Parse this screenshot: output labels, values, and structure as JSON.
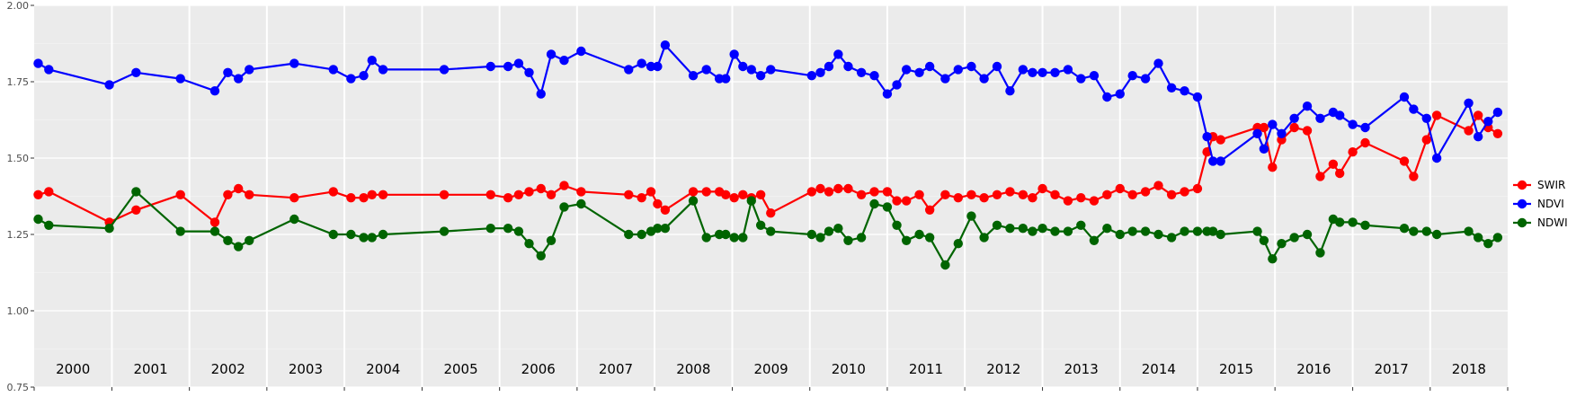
{
  "chart_data": {
    "type": "line",
    "title": "",
    "xlabel": "",
    "ylabel": "",
    "ylim": [
      0.75,
      2.0
    ],
    "xlim": [
      "2000-01-01",
      "2019-01-01"
    ],
    "yticks": [
      "0.75",
      "1.00",
      "1.25",
      "1.50",
      "1.75",
      "2.00"
    ],
    "year_labels": [
      "2000",
      "2001",
      "2002",
      "2003",
      "2004",
      "2005",
      "2006",
      "2007",
      "2008",
      "2009",
      "2010",
      "2011",
      "2012",
      "2013",
      "2014",
      "2015",
      "2016",
      "2017",
      "2018"
    ],
    "grid": true,
    "legend_position": "right",
    "series": [
      {
        "name": "SWIR",
        "color": "#ff0000",
        "points": [
          [
            "2000-01-20",
            1.38
          ],
          [
            "2000-03-10",
            1.39
          ],
          [
            "2000-12-20",
            1.29
          ],
          [
            "2001-04-25",
            1.33
          ],
          [
            "2001-11-20",
            1.38
          ],
          [
            "2002-05-01",
            1.29
          ],
          [
            "2002-07-01",
            1.38
          ],
          [
            "2002-08-20",
            1.4
          ],
          [
            "2002-10-10",
            1.38
          ],
          [
            "2003-05-10",
            1.37
          ],
          [
            "2003-11-10",
            1.39
          ],
          [
            "2004-02-01",
            1.37
          ],
          [
            "2004-04-01",
            1.37
          ],
          [
            "2004-05-10",
            1.38
          ],
          [
            "2004-07-01",
            1.38
          ],
          [
            "2005-04-15",
            1.38
          ],
          [
            "2005-11-20",
            1.38
          ],
          [
            "2006-02-10",
            1.37
          ],
          [
            "2006-04-01",
            1.38
          ],
          [
            "2006-05-20",
            1.39
          ],
          [
            "2006-07-15",
            1.4
          ],
          [
            "2006-09-01",
            1.38
          ],
          [
            "2006-11-01",
            1.41
          ],
          [
            "2007-01-20",
            1.39
          ],
          [
            "2007-09-01",
            1.38
          ],
          [
            "2007-11-01",
            1.37
          ],
          [
            "2007-12-15",
            1.39
          ],
          [
            "2008-01-15",
            1.35
          ],
          [
            "2008-02-20",
            1.33
          ],
          [
            "2008-07-01",
            1.39
          ],
          [
            "2008-09-01",
            1.39
          ],
          [
            "2008-11-01",
            1.39
          ],
          [
            "2008-12-01",
            1.38
          ],
          [
            "2009-01-10",
            1.37
          ],
          [
            "2009-02-20",
            1.38
          ],
          [
            "2009-04-01",
            1.37
          ],
          [
            "2009-05-15",
            1.38
          ],
          [
            "2009-07-01",
            1.32
          ],
          [
            "2010-01-10",
            1.39
          ],
          [
            "2010-02-20",
            1.4
          ],
          [
            "2010-04-01",
            1.39
          ],
          [
            "2010-05-15",
            1.4
          ],
          [
            "2010-07-01",
            1.4
          ],
          [
            "2010-09-01",
            1.38
          ],
          [
            "2010-11-01",
            1.39
          ],
          [
            "2011-01-01",
            1.39
          ],
          [
            "2011-02-15",
            1.36
          ],
          [
            "2011-04-01",
            1.36
          ],
          [
            "2011-06-01",
            1.38
          ],
          [
            "2011-07-20",
            1.33
          ],
          [
            "2011-10-01",
            1.38
          ],
          [
            "2011-12-01",
            1.37
          ],
          [
            "2012-02-01",
            1.38
          ],
          [
            "2012-04-01",
            1.37
          ],
          [
            "2012-06-01",
            1.38
          ],
          [
            "2012-08-01",
            1.39
          ],
          [
            "2012-10-01",
            1.38
          ],
          [
            "2012-11-15",
            1.37
          ],
          [
            "2013-01-01",
            1.4
          ],
          [
            "2013-03-01",
            1.38
          ],
          [
            "2013-05-01",
            1.36
          ],
          [
            "2013-07-01",
            1.37
          ],
          [
            "2013-09-01",
            1.36
          ],
          [
            "2013-11-01",
            1.38
          ],
          [
            "2014-01-01",
            1.4
          ],
          [
            "2014-03-01",
            1.38
          ],
          [
            "2014-05-01",
            1.39
          ],
          [
            "2014-07-01",
            1.41
          ],
          [
            "2014-09-01",
            1.38
          ],
          [
            "2014-11-01",
            1.39
          ],
          [
            "2015-01-01",
            1.4
          ],
          [
            "2015-02-15",
            1.52
          ],
          [
            "2015-03-15",
            1.57
          ],
          [
            "2015-04-20",
            1.56
          ],
          [
            "2015-10-10",
            1.6
          ],
          [
            "2015-11-10",
            1.6
          ],
          [
            "2015-12-20",
            1.47
          ],
          [
            "2016-02-01",
            1.56
          ],
          [
            "2016-04-01",
            1.6
          ],
          [
            "2016-06-01",
            1.59
          ],
          [
            "2016-08-01",
            1.44
          ],
          [
            "2016-10-01",
            1.48
          ],
          [
            "2016-11-01",
            1.45
          ],
          [
            "2017-01-01",
            1.52
          ],
          [
            "2017-03-01",
            1.55
          ],
          [
            "2017-09-01",
            1.49
          ],
          [
            "2017-10-15",
            1.44
          ],
          [
            "2017-12-15",
            1.56
          ],
          [
            "2018-02-01",
            1.64
          ],
          [
            "2018-07-01",
            1.59
          ],
          [
            "2018-08-15",
            1.64
          ],
          [
            "2018-10-01",
            1.6
          ],
          [
            "2018-11-15",
            1.58
          ]
        ]
      },
      {
        "name": "NDVI",
        "color": "#0000ff",
        "points": [
          [
            "2000-01-20",
            1.81
          ],
          [
            "2000-03-10",
            1.79
          ],
          [
            "2000-12-20",
            1.74
          ],
          [
            "2001-04-25",
            1.78
          ],
          [
            "2001-11-20",
            1.76
          ],
          [
            "2002-05-01",
            1.72
          ],
          [
            "2002-07-01",
            1.78
          ],
          [
            "2002-08-20",
            1.76
          ],
          [
            "2002-10-10",
            1.79
          ],
          [
            "2003-05-10",
            1.81
          ],
          [
            "2003-11-10",
            1.79
          ],
          [
            "2004-02-01",
            1.76
          ],
          [
            "2004-04-01",
            1.77
          ],
          [
            "2004-05-10",
            1.82
          ],
          [
            "2004-07-01",
            1.79
          ],
          [
            "2005-04-15",
            1.79
          ],
          [
            "2005-11-20",
            1.8
          ],
          [
            "2006-02-10",
            1.8
          ],
          [
            "2006-04-01",
            1.81
          ],
          [
            "2006-05-20",
            1.78
          ],
          [
            "2006-07-15",
            1.71
          ],
          [
            "2006-09-01",
            1.84
          ],
          [
            "2006-11-01",
            1.82
          ],
          [
            "2007-01-20",
            1.85
          ],
          [
            "2007-09-01",
            1.79
          ],
          [
            "2007-11-01",
            1.81
          ],
          [
            "2007-12-15",
            1.8
          ],
          [
            "2008-01-15",
            1.8
          ],
          [
            "2008-02-20",
            1.87
          ],
          [
            "2008-07-01",
            1.77
          ],
          [
            "2008-09-01",
            1.79
          ],
          [
            "2008-11-01",
            1.76
          ],
          [
            "2008-12-01",
            1.76
          ],
          [
            "2009-01-10",
            1.84
          ],
          [
            "2009-02-20",
            1.8
          ],
          [
            "2009-04-01",
            1.79
          ],
          [
            "2009-05-15",
            1.77
          ],
          [
            "2009-07-01",
            1.79
          ],
          [
            "2010-01-10",
            1.77
          ],
          [
            "2010-02-20",
            1.78
          ],
          [
            "2010-04-01",
            1.8
          ],
          [
            "2010-05-15",
            1.84
          ],
          [
            "2010-07-01",
            1.8
          ],
          [
            "2010-09-01",
            1.78
          ],
          [
            "2010-11-01",
            1.77
          ],
          [
            "2011-01-01",
            1.71
          ],
          [
            "2011-02-15",
            1.74
          ],
          [
            "2011-04-01",
            1.79
          ],
          [
            "2011-06-01",
            1.78
          ],
          [
            "2011-07-20",
            1.8
          ],
          [
            "2011-10-01",
            1.76
          ],
          [
            "2011-12-01",
            1.79
          ],
          [
            "2012-02-01",
            1.8
          ],
          [
            "2012-04-01",
            1.76
          ],
          [
            "2012-06-01",
            1.8
          ],
          [
            "2012-08-01",
            1.72
          ],
          [
            "2012-10-01",
            1.79
          ],
          [
            "2012-11-15",
            1.78
          ],
          [
            "2013-01-01",
            1.78
          ],
          [
            "2013-03-01",
            1.78
          ],
          [
            "2013-05-01",
            1.79
          ],
          [
            "2013-07-01",
            1.76
          ],
          [
            "2013-09-01",
            1.77
          ],
          [
            "2013-11-01",
            1.7
          ],
          [
            "2014-01-01",
            1.71
          ],
          [
            "2014-03-01",
            1.77
          ],
          [
            "2014-05-01",
            1.76
          ],
          [
            "2014-07-01",
            1.81
          ],
          [
            "2014-09-01",
            1.73
          ],
          [
            "2014-11-01",
            1.72
          ],
          [
            "2015-01-01",
            1.7
          ],
          [
            "2015-02-15",
            1.57
          ],
          [
            "2015-03-15",
            1.49
          ],
          [
            "2015-04-20",
            1.49
          ],
          [
            "2015-10-10",
            1.58
          ],
          [
            "2015-11-10",
            1.53
          ],
          [
            "2015-12-20",
            1.61
          ],
          [
            "2016-02-01",
            1.58
          ],
          [
            "2016-04-01",
            1.63
          ],
          [
            "2016-06-01",
            1.67
          ],
          [
            "2016-08-01",
            1.63
          ],
          [
            "2016-10-01",
            1.65
          ],
          [
            "2016-11-01",
            1.64
          ],
          [
            "2017-01-01",
            1.61
          ],
          [
            "2017-03-01",
            1.6
          ],
          [
            "2017-09-01",
            1.7
          ],
          [
            "2017-10-15",
            1.66
          ],
          [
            "2017-12-15",
            1.63
          ],
          [
            "2018-02-01",
            1.5
          ],
          [
            "2018-07-01",
            1.68
          ],
          [
            "2018-08-15",
            1.57
          ],
          [
            "2018-10-01",
            1.62
          ],
          [
            "2018-11-15",
            1.65
          ]
        ]
      },
      {
        "name": "NDWI",
        "color": "#006400",
        "points": [
          [
            "2000-01-20",
            1.3
          ],
          [
            "2000-03-10",
            1.28
          ],
          [
            "2000-12-20",
            1.27
          ],
          [
            "2001-04-25",
            1.39
          ],
          [
            "2001-11-20",
            1.26
          ],
          [
            "2002-05-01",
            1.26
          ],
          [
            "2002-07-01",
            1.23
          ],
          [
            "2002-08-20",
            1.21
          ],
          [
            "2002-10-10",
            1.23
          ],
          [
            "2003-05-10",
            1.3
          ],
          [
            "2003-11-10",
            1.25
          ],
          [
            "2004-02-01",
            1.25
          ],
          [
            "2004-04-01",
            1.24
          ],
          [
            "2004-05-10",
            1.24
          ],
          [
            "2004-07-01",
            1.25
          ],
          [
            "2005-04-15",
            1.26
          ],
          [
            "2005-11-20",
            1.27
          ],
          [
            "2006-02-10",
            1.27
          ],
          [
            "2006-04-01",
            1.26
          ],
          [
            "2006-05-20",
            1.22
          ],
          [
            "2006-07-15",
            1.18
          ],
          [
            "2006-09-01",
            1.23
          ],
          [
            "2006-11-01",
            1.34
          ],
          [
            "2007-01-20",
            1.35
          ],
          [
            "2007-09-01",
            1.25
          ],
          [
            "2007-11-01",
            1.25
          ],
          [
            "2007-12-15",
            1.26
          ],
          [
            "2008-01-15",
            1.27
          ],
          [
            "2008-02-20",
            1.27
          ],
          [
            "2008-07-01",
            1.36
          ],
          [
            "2008-09-01",
            1.24
          ],
          [
            "2008-11-01",
            1.25
          ],
          [
            "2008-12-01",
            1.25
          ],
          [
            "2009-01-10",
            1.24
          ],
          [
            "2009-02-20",
            1.24
          ],
          [
            "2009-04-01",
            1.36
          ],
          [
            "2009-05-15",
            1.28
          ],
          [
            "2009-07-01",
            1.26
          ],
          [
            "2010-01-10",
            1.25
          ],
          [
            "2010-02-20",
            1.24
          ],
          [
            "2010-04-01",
            1.26
          ],
          [
            "2010-05-15",
            1.27
          ],
          [
            "2010-07-01",
            1.23
          ],
          [
            "2010-09-01",
            1.24
          ],
          [
            "2010-11-01",
            1.35
          ],
          [
            "2011-01-01",
            1.34
          ],
          [
            "2011-02-15",
            1.28
          ],
          [
            "2011-04-01",
            1.23
          ],
          [
            "2011-06-01",
            1.25
          ],
          [
            "2011-07-20",
            1.24
          ],
          [
            "2011-10-01",
            1.15
          ],
          [
            "2011-12-01",
            1.22
          ],
          [
            "2012-02-01",
            1.31
          ],
          [
            "2012-04-01",
            1.24
          ],
          [
            "2012-06-01",
            1.28
          ],
          [
            "2012-08-01",
            1.27
          ],
          [
            "2012-10-01",
            1.27
          ],
          [
            "2012-11-15",
            1.26
          ],
          [
            "2013-01-01",
            1.27
          ],
          [
            "2013-03-01",
            1.26
          ],
          [
            "2013-05-01",
            1.26
          ],
          [
            "2013-07-01",
            1.28
          ],
          [
            "2013-09-01",
            1.23
          ],
          [
            "2013-11-01",
            1.27
          ],
          [
            "2014-01-01",
            1.25
          ],
          [
            "2014-03-01",
            1.26
          ],
          [
            "2014-05-01",
            1.26
          ],
          [
            "2014-07-01",
            1.25
          ],
          [
            "2014-09-01",
            1.24
          ],
          [
            "2014-11-01",
            1.26
          ],
          [
            "2015-01-01",
            1.26
          ],
          [
            "2015-02-15",
            1.26
          ],
          [
            "2015-03-15",
            1.26
          ],
          [
            "2015-04-20",
            1.25
          ],
          [
            "2015-10-10",
            1.26
          ],
          [
            "2015-11-10",
            1.23
          ],
          [
            "2015-12-20",
            1.17
          ],
          [
            "2016-02-01",
            1.22
          ],
          [
            "2016-04-01",
            1.24
          ],
          [
            "2016-06-01",
            1.25
          ],
          [
            "2016-08-01",
            1.19
          ],
          [
            "2016-10-01",
            1.3
          ],
          [
            "2016-11-01",
            1.29
          ],
          [
            "2017-01-01",
            1.29
          ],
          [
            "2017-03-01",
            1.28
          ],
          [
            "2017-09-01",
            1.27
          ],
          [
            "2017-10-15",
            1.26
          ],
          [
            "2017-12-15",
            1.26
          ],
          [
            "2018-02-01",
            1.25
          ],
          [
            "2018-07-01",
            1.26
          ],
          [
            "2018-08-15",
            1.24
          ],
          [
            "2018-10-01",
            1.22
          ],
          [
            "2018-11-15",
            1.24
          ]
        ]
      }
    ]
  }
}
